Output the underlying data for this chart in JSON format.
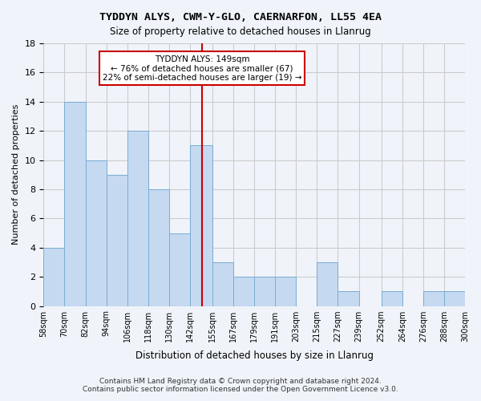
{
  "title": "TYDDYN ALYS, CWM-Y-GLO, CAERNARFON, LL55 4EA",
  "subtitle": "Size of property relative to detached houses in Llanrug",
  "xlabel": "Distribution of detached houses by size in Llanrug",
  "ylabel": "Number of detached properties",
  "bin_labels": [
    "58sqm",
    "70sqm",
    "82sqm",
    "94sqm",
    "106sqm",
    "118sqm",
    "130sqm",
    "142sqm",
    "155sqm",
    "167sqm",
    "179sqm",
    "191sqm",
    "203sqm",
    "215sqm",
    "227sqm",
    "239sqm",
    "252sqm",
    "264sqm",
    "276sqm",
    "288sqm",
    "300sqm"
  ],
  "bin_edges": [
    58,
    70,
    82,
    94,
    106,
    118,
    130,
    142,
    155,
    167,
    179,
    191,
    203,
    215,
    227,
    239,
    252,
    264,
    276,
    288,
    300
  ],
  "counts": [
    4,
    14,
    10,
    9,
    12,
    8,
    5,
    11,
    3,
    2,
    2,
    2,
    0,
    3,
    1,
    0,
    1,
    0,
    1,
    1
  ],
  "bar_color": "#c5d9f0",
  "bar_edge_color": "#7aacd4",
  "property_size": 149,
  "annotation_text": "TYDDYN ALYS: 149sqm\n← 76% of detached houses are smaller (67)\n22% of semi-detached houses are larger (19) →",
  "annotation_box_color": "#ffffff",
  "annotation_box_edge_color": "#cc0000",
  "vline_color": "#cc0000",
  "ylim": [
    0,
    18
  ],
  "yticks": [
    0,
    2,
    4,
    6,
    8,
    10,
    12,
    14,
    16,
    18
  ],
  "grid_color": "#cccccc",
  "background_color": "#f0f4fa",
  "footer": "Contains HM Land Registry data © Crown copyright and database right 2024.\nContains public sector information licensed under the Open Government Licence v3.0."
}
